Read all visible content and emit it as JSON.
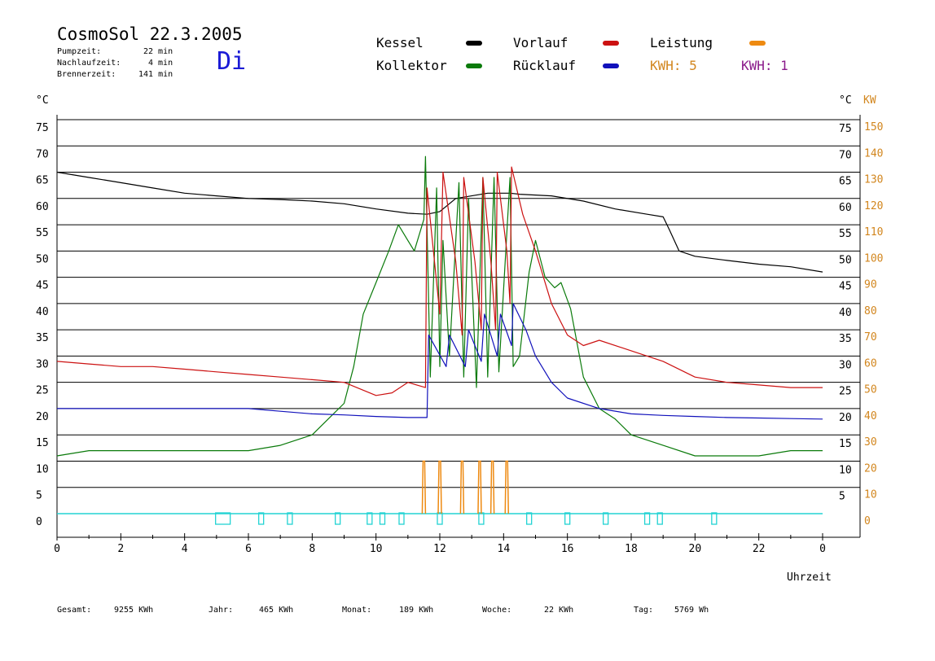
{
  "header": {
    "title": "CosmoSol 22.3.2005",
    "pumpzeit_label": "Pumpzeit:",
    "pumpzeit_value": "22 min",
    "nachlaufzeit_label": "Nachlaufzeit:",
    "nachlaufzeit_value": "4 min",
    "brennerzeit_label": "Brennerzeit:",
    "brennerzeit_value": "141 min",
    "day": "Di"
  },
  "legend": {
    "kessel": "Kessel",
    "kollektor": "Kollektor",
    "vorlauf": "Vorlauf",
    "ruecklauf": "Rücklauf",
    "leistung": "Leistung",
    "kwh1": "KWH: 5",
    "kwh2": "KWH: 1"
  },
  "axes": {
    "left_unit": "°C",
    "right_unit_c": "°C",
    "right_unit_kw": "KW",
    "xlabel": "Uhrzeit"
  },
  "footer": {
    "gesamt_label": "Gesamt:",
    "gesamt_value": "9255 KWh",
    "jahr_label": "Jahr:",
    "jahr_value": "465 KWh",
    "monat_label": "Monat:",
    "monat_value": "189 KWh",
    "woche_label": "Woche:",
    "woche_value": "22 KWh",
    "tag_label": "Tag:",
    "tag_value": "5769 Wh"
  },
  "colors": {
    "kessel": "#000000",
    "kollektor": "#0a7a0a",
    "vorlauf": "#cc1111",
    "ruecklauf": "#1111bb",
    "leistung": "#ee8a11",
    "kwh2": "#8a1a8a",
    "pump": "#22d3d3",
    "axis_orange": "#d2861e"
  },
  "chart_data": {
    "type": "line",
    "title": "CosmoSol 22.3.2005",
    "xlabel": "Uhrzeit",
    "ylabel": "°C",
    "y2label": "KW",
    "xlim": [
      0,
      24
    ],
    "ylim": [
      0,
      75
    ],
    "y2lim": [
      0,
      150
    ],
    "x_ticks": [
      "0",
      "2",
      "4",
      "6",
      "8",
      "10",
      "12",
      "14",
      "16",
      "18",
      "20",
      "22",
      "0"
    ],
    "x_tick_values": [
      0,
      2,
      4,
      6,
      8,
      10,
      12,
      14,
      16,
      18,
      20,
      22,
      24
    ],
    "y_ticks_left": [
      75,
      70,
      65,
      60,
      55,
      50,
      45,
      40,
      35,
      30,
      25,
      20,
      15,
      10,
      5,
      0
    ],
    "y_ticks_right_c": [
      75,
      70,
      65,
      60,
      55,
      50,
      45,
      40,
      35,
      30,
      25,
      20,
      15,
      10,
      5
    ],
    "y_ticks_right_kw": [
      150,
      140,
      130,
      120,
      110,
      100,
      90,
      80,
      70,
      60,
      50,
      40,
      30,
      20,
      10,
      0
    ],
    "grid": true,
    "series": [
      {
        "name": "Kessel",
        "points": [
          [
            0,
            65
          ],
          [
            1,
            64
          ],
          [
            2,
            63
          ],
          [
            3,
            62
          ],
          [
            4,
            61
          ],
          [
            5,
            60.5
          ],
          [
            6,
            60
          ],
          [
            7,
            59.8
          ],
          [
            8,
            59.5
          ],
          [
            9,
            59
          ],
          [
            10,
            58
          ],
          [
            11,
            57.2
          ],
          [
            11.6,
            57
          ],
          [
            12,
            57.5
          ],
          [
            12.5,
            60
          ],
          [
            13.5,
            61
          ],
          [
            14.2,
            61
          ],
          [
            14.5,
            60.8
          ],
          [
            15.5,
            60.5
          ],
          [
            16.5,
            59.5
          ],
          [
            17.5,
            58
          ],
          [
            18.5,
            57
          ],
          [
            19,
            56.5
          ],
          [
            19.2,
            54
          ],
          [
            19.5,
            50
          ],
          [
            20,
            49
          ],
          [
            21,
            48.2
          ],
          [
            22,
            47.5
          ],
          [
            23,
            47
          ],
          [
            24,
            46
          ]
        ]
      },
      {
        "name": "Kollektor",
        "points": [
          [
            0,
            11
          ],
          [
            1,
            12
          ],
          [
            2,
            12
          ],
          [
            3,
            12
          ],
          [
            4,
            12
          ],
          [
            5,
            12
          ],
          [
            6,
            12
          ],
          [
            7,
            13
          ],
          [
            8,
            15
          ],
          [
            8.5,
            18
          ],
          [
            9,
            21
          ],
          [
            9.3,
            28
          ],
          [
            9.6,
            38
          ],
          [
            10,
            44
          ],
          [
            10.4,
            50
          ],
          [
            10.7,
            55
          ],
          [
            11,
            52
          ],
          [
            11.2,
            50
          ],
          [
            11.5,
            56
          ],
          [
            11.55,
            68
          ],
          [
            11.7,
            26
          ],
          [
            11.9,
            62
          ],
          [
            12,
            28
          ],
          [
            12.1,
            52
          ],
          [
            12.3,
            30
          ],
          [
            12.6,
            63
          ],
          [
            12.75,
            26
          ],
          [
            12.9,
            60
          ],
          [
            13.15,
            24
          ],
          [
            13.35,
            64
          ],
          [
            13.5,
            26
          ],
          [
            13.7,
            64
          ],
          [
            13.85,
            27
          ],
          [
            14.2,
            64
          ],
          [
            14.3,
            28
          ],
          [
            14.5,
            30
          ],
          [
            14.8,
            46
          ],
          [
            15,
            52
          ],
          [
            15.3,
            45
          ],
          [
            15.6,
            43
          ],
          [
            15.8,
            44
          ],
          [
            16.1,
            39
          ],
          [
            16.5,
            26
          ],
          [
            17,
            20
          ],
          [
            17.5,
            18
          ],
          [
            18,
            15
          ],
          [
            19,
            13
          ],
          [
            20,
            11
          ],
          [
            21,
            11
          ],
          [
            22,
            11
          ],
          [
            23,
            12
          ],
          [
            24,
            12
          ]
        ]
      },
      {
        "name": "Vorlauf",
        "points": [
          [
            0,
            29
          ],
          [
            1,
            28.5
          ],
          [
            2,
            28
          ],
          [
            3,
            28
          ],
          [
            4,
            27.5
          ],
          [
            5,
            27
          ],
          [
            6,
            26.5
          ],
          [
            7,
            26
          ],
          [
            8,
            25.5
          ],
          [
            9,
            25
          ],
          [
            10,
            22.5
          ],
          [
            10.5,
            23
          ],
          [
            11,
            25
          ],
          [
            11.55,
            24
          ],
          [
            11.6,
            62
          ],
          [
            12,
            38
          ],
          [
            12.1,
            65
          ],
          [
            12.5,
            48
          ],
          [
            12.7,
            34
          ],
          [
            12.75,
            64
          ],
          [
            13.1,
            48
          ],
          [
            13.3,
            35
          ],
          [
            13.35,
            64
          ],
          [
            13.6,
            48
          ],
          [
            13.75,
            35
          ],
          [
            13.8,
            65
          ],
          [
            14.1,
            50
          ],
          [
            14.2,
            40
          ],
          [
            14.25,
            66
          ],
          [
            14.6,
            57
          ],
          [
            15,
            50
          ],
          [
            15.5,
            40
          ],
          [
            16,
            34
          ],
          [
            16.5,
            32
          ],
          [
            17,
            33
          ],
          [
            18,
            31
          ],
          [
            19,
            29
          ],
          [
            20,
            26
          ],
          [
            21,
            25
          ],
          [
            22,
            24.5
          ],
          [
            23,
            24
          ],
          [
            24,
            24
          ]
        ]
      },
      {
        "name": "Rücklauf",
        "points": [
          [
            0,
            20
          ],
          [
            1,
            20
          ],
          [
            2,
            20
          ],
          [
            3,
            20
          ],
          [
            4,
            20
          ],
          [
            5,
            20
          ],
          [
            6,
            20
          ],
          [
            7,
            19.5
          ],
          [
            8,
            19
          ],
          [
            9,
            18.8
          ],
          [
            10,
            18.5
          ],
          [
            11,
            18.3
          ],
          [
            11.6,
            18.3
          ],
          [
            11.65,
            34
          ],
          [
            12.2,
            28
          ],
          [
            12.3,
            34
          ],
          [
            12.8,
            28
          ],
          [
            12.9,
            35
          ],
          [
            13.3,
            29
          ],
          [
            13.4,
            38
          ],
          [
            13.8,
            30
          ],
          [
            13.9,
            38
          ],
          [
            14.25,
            32
          ],
          [
            14.3,
            40
          ],
          [
            14.7,
            35
          ],
          [
            15,
            30
          ],
          [
            15.5,
            25
          ],
          [
            16,
            22
          ],
          [
            17,
            20
          ],
          [
            18,
            19
          ],
          [
            19,
            18.7
          ],
          [
            20,
            18.5
          ],
          [
            21,
            18.3
          ],
          [
            22,
            18.2
          ],
          [
            23,
            18.1
          ],
          [
            24,
            18
          ]
        ]
      }
    ],
    "power_spikes_kw": [
      [
        11.5,
        20
      ],
      [
        12.0,
        20
      ],
      [
        12.7,
        20
      ],
      [
        13.25,
        20
      ],
      [
        13.65,
        20
      ],
      [
        14.1,
        20
      ]
    ],
    "pump_markers_hours": [
      5.2,
      6.4,
      7.3,
      8.8,
      9.8,
      10.2,
      10.8,
      12.0,
      13.3,
      14.8,
      16.0,
      17.2,
      18.5,
      18.9,
      20.6
    ]
  }
}
